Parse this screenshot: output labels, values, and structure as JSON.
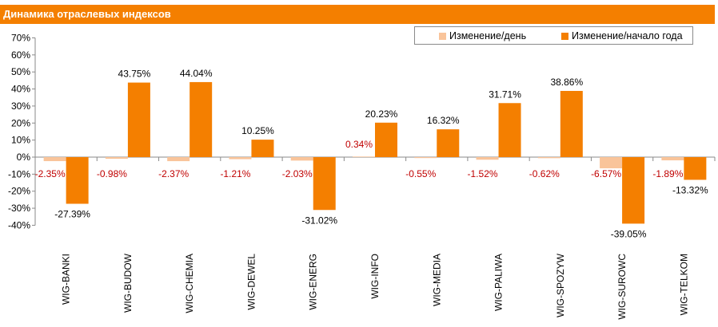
{
  "header": {
    "title": "Динамика отраслевых индексов"
  },
  "colors": {
    "header_bg": "#f47f00",
    "series_day": "#f9c49a",
    "series_ytd": "#f47f00",
    "day_label": "#c00000"
  },
  "chart_data": {
    "type": "bar",
    "title": "Динамика отраслевых индексов",
    "categories": [
      "WIG-BANKI",
      "WIG-BUDOW",
      "WIG-CHEMIA",
      "WIG-DEWEL",
      "WIG-ENERG",
      "WIG-INFO",
      "WIG-MEDIA",
      "WIG-PALIWA",
      "WIG-SPOZYW",
      "WIG-SUROWC",
      "WIG-TELKOM"
    ],
    "series": [
      {
        "name": "Изменение/день",
        "values": [
          -2.35,
          -0.98,
          -2.37,
          -1.21,
          -2.03,
          0.34,
          -0.55,
          -1.52,
          -0.62,
          -6.57,
          -1.89
        ],
        "labels": [
          "-2.35%",
          "-0.98%",
          "-2.37%",
          "-1.21%",
          "-2.03%",
          "0.34%",
          "-0.55%",
          "-1.52%",
          "-0.62%",
          "-6.57%",
          "-1.89%"
        ]
      },
      {
        "name": "Изменение/начало года",
        "values": [
          -27.39,
          43.75,
          44.04,
          10.25,
          -31.02,
          20.23,
          16.32,
          31.71,
          38.86,
          -39.05,
          -13.32
        ],
        "labels": [
          "-27.39%",
          "43.75%",
          "44.04%",
          "10.25%",
          "-31.02%",
          "20.23%",
          "16.32%",
          "31.71%",
          "38.86%",
          "-39.05%",
          "-13.32%"
        ]
      }
    ],
    "yticks": [
      "70%",
      "60%",
      "50%",
      "40%",
      "30%",
      "20%",
      "10%",
      "0%",
      "-10%",
      "-20%",
      "-30%",
      "-40%"
    ],
    "ylim": [
      -40,
      70
    ],
    "xlabel": "",
    "ylabel": "",
    "grid": false,
    "legend": "top-right"
  }
}
